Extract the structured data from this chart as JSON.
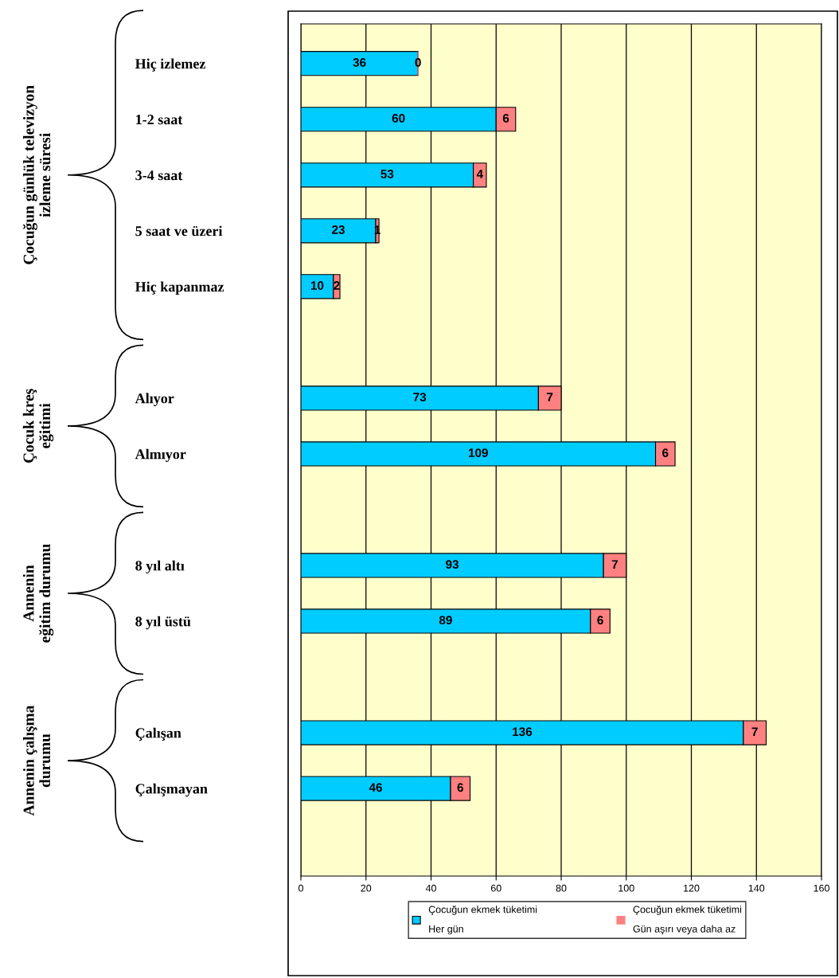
{
  "chart_data": {
    "type": "bar",
    "orientation": "horizontal",
    "stacked": true,
    "categories": [
      "Hiç izlemez",
      "1-2 saat",
      "3-4 saat",
      "5 saat ve üzeri",
      "Hiç kapanmaz",
      null,
      "Alıyor",
      "Almıyor",
      null,
      "8 yıl altı",
      "8 yıl üstü",
      null,
      "Çalışan",
      "Çalışmayan"
    ],
    "series": [
      {
        "name": "Çocuğun ekmek tüketimi\nHer gün",
        "color": "#00ccff",
        "values": [
          36,
          60,
          53,
          23,
          10,
          null,
          73,
          109,
          null,
          93,
          89,
          null,
          136,
          46
        ]
      },
      {
        "name": "Çocuğun ekmek tüketimi\nGün aşırı veya daha az",
        "color": "#ff8080",
        "values": [
          0,
          6,
          4,
          1,
          2,
          null,
          7,
          6,
          null,
          7,
          6,
          null,
          7,
          6
        ]
      }
    ],
    "xlim": [
      0,
      160
    ],
    "xticks": [
      0,
      20,
      40,
      60,
      80,
      100,
      120,
      140,
      160
    ],
    "grid": "x",
    "data_labels": true,
    "legend": "bottom",
    "annotations": [
      "Çocuğun günlük televizyon\nizleme süresi",
      "Çocuk kreş\neğitimi",
      "Annenin\neğitim durumu",
      "Annenin çalışma\ndurumu"
    ]
  }
}
